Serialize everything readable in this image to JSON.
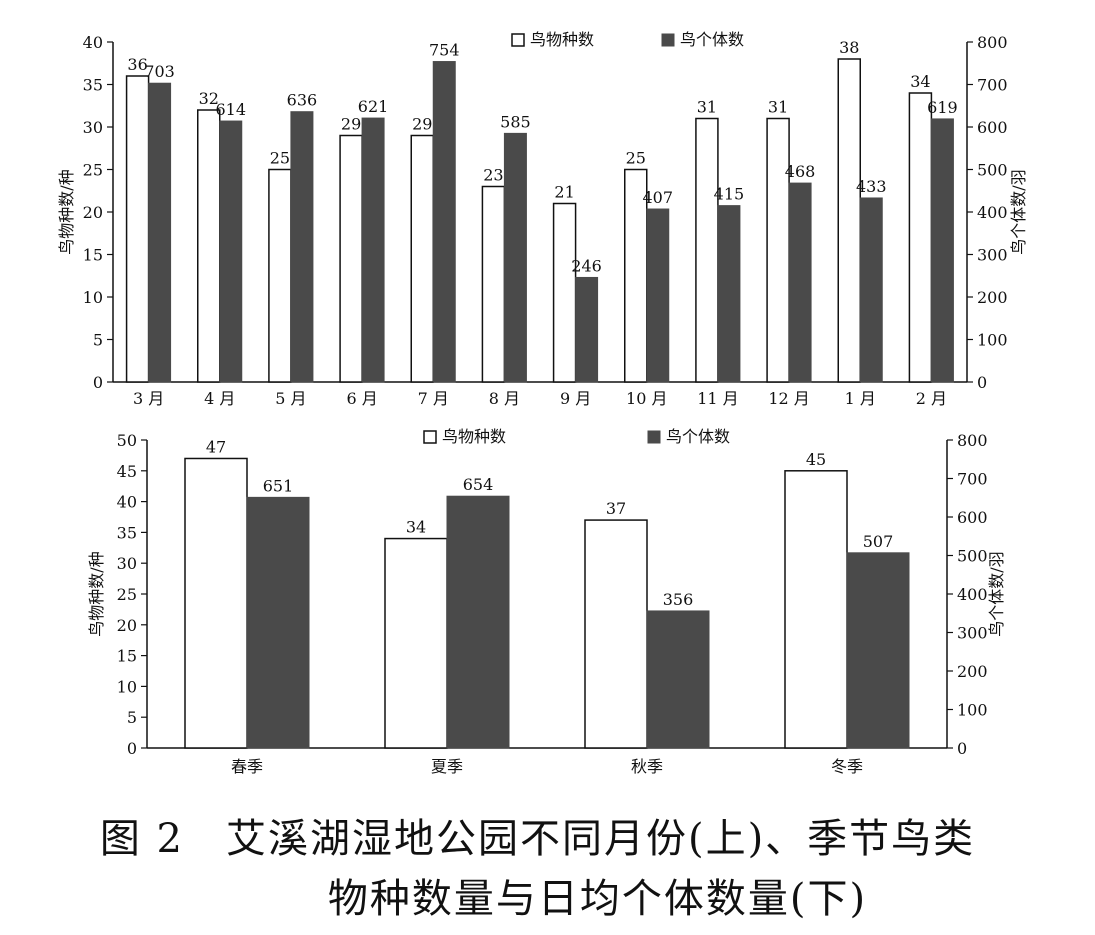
{
  "colors": {
    "species_fill": "#ffffff",
    "count_fill": "#4a4a4a",
    "axis": "#111111"
  },
  "caption": {
    "line1": "图 2　艾溪湖湿地公园不同月份(上)、季节鸟类",
    "line2": "物种数量与日均个体数量(下)"
  },
  "chart_data": [
    {
      "type": "bar",
      "categories": [
        "3 月",
        "4 月",
        "5 月",
        "6 月",
        "7 月",
        "8 月",
        "9 月",
        "10 月",
        "11 月",
        "12 月",
        "1 月",
        "2 月"
      ],
      "series": [
        {
          "name": "鸟物种数",
          "axis": "left",
          "values": [
            36,
            32,
            25,
            29,
            29,
            23,
            21,
            25,
            31,
            31,
            38,
            34
          ]
        },
        {
          "name": "鸟个体数",
          "axis": "right",
          "values": [
            703,
            614,
            636,
            621,
            754,
            585,
            246,
            407,
            415,
            468,
            433,
            619
          ]
        }
      ],
      "ylabel": "鸟物种数/种",
      "y2label": "鸟个体数/羽",
      "ylim": [
        0,
        40
      ],
      "y2lim": [
        0,
        800
      ],
      "yticks": [
        0,
        5,
        10,
        15,
        20,
        25,
        30,
        35,
        40
      ],
      "y2ticks": [
        0,
        100,
        200,
        300,
        400,
        500,
        600,
        700,
        800
      ],
      "legend": "top-center",
      "grid": false
    },
    {
      "type": "bar",
      "categories": [
        "春季",
        "夏季",
        "秋季",
        "冬季"
      ],
      "series": [
        {
          "name": "鸟物种数",
          "axis": "left",
          "values": [
            47,
            34,
            37,
            45
          ]
        },
        {
          "name": "鸟个体数",
          "axis": "right",
          "values": [
            651,
            654,
            356,
            507
          ]
        }
      ],
      "ylabel": "鸟物种数/种",
      "y2label": "鸟个体数/羽",
      "ylim": [
        0,
        50
      ],
      "y2lim": [
        0,
        800
      ],
      "yticks": [
        0,
        5,
        10,
        15,
        20,
        25,
        30,
        35,
        40,
        45,
        50
      ],
      "y2ticks": [
        0,
        100,
        200,
        300,
        400,
        500,
        600,
        700,
        800
      ],
      "legend": "top-center",
      "grid": false
    }
  ]
}
